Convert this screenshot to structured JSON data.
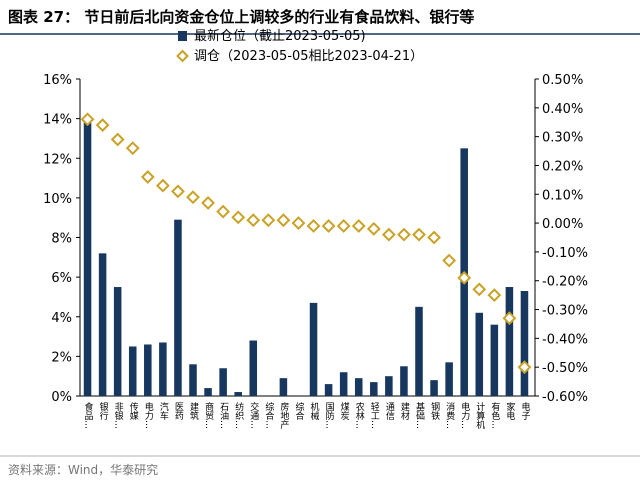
{
  "chart_data": {
    "type": "bar-scatter",
    "title": "图表 27：   节日前后北向资金仓位上调较多的行业有食品饮料、银行等",
    "source": "资料来源：Wind，华泰研究",
    "categories": [
      "食品…",
      "银行",
      "非银…",
      "传媒",
      "电力…",
      "汽车",
      "医药",
      "建筑",
      "商贸…",
      "石油…",
      "纺织…",
      "交通…",
      "综合…",
      "房地产",
      "综合",
      "机械",
      "国防…",
      "煤炭",
      "农林…",
      "轻工…",
      "通信",
      "建材",
      "基础…",
      "钢铁",
      "消费…",
      "电力…",
      "计算机",
      "有色…",
      "家电",
      "电子"
    ],
    "series": [
      {
        "name": "最新仓位（截止2023-05-05)",
        "color": "#17375e",
        "kind": "bar",
        "values": [
          14.0,
          7.2,
          5.5,
          2.5,
          2.6,
          2.7,
          8.9,
          1.6,
          0.4,
          1.4,
          0.2,
          2.8,
          0.0,
          0.9,
          0.0,
          4.7,
          0.6,
          1.2,
          0.9,
          0.7,
          1.0,
          1.5,
          4.5,
          0.8,
          1.7,
          12.5,
          4.2,
          3.6,
          5.5,
          5.3
        ]
      },
      {
        "name": "调仓（2023-05-05相比2023-04-21）",
        "color": "#c9a227",
        "kind": "diamond",
        "axis": "y2",
        "values": [
          0.36,
          0.34,
          0.29,
          0.26,
          0.16,
          0.13,
          0.11,
          0.09,
          0.07,
          0.04,
          0.02,
          0.01,
          0.01,
          0.01,
          0.0,
          -0.01,
          -0.01,
          -0.01,
          -0.01,
          -0.02,
          -0.04,
          -0.04,
          -0.04,
          -0.05,
          -0.13,
          -0.19,
          -0.23,
          -0.25,
          -0.33,
          -0.5
        ]
      }
    ],
    "ylim": [
      0,
      16
    ],
    "yticks": [
      {
        "value": 0,
        "label": "0%"
      },
      {
        "value": 2,
        "label": "2%"
      },
      {
        "value": 4,
        "label": "4%"
      },
      {
        "value": 6,
        "label": "6%"
      },
      {
        "value": 8,
        "label": "8%"
      },
      {
        "value": 10,
        "label": "10%"
      },
      {
        "value": 12,
        "label": "12%"
      },
      {
        "value": 14,
        "label": "14%"
      },
      {
        "value": 16,
        "label": "16%"
      }
    ],
    "y2lim": [
      -0.6,
      0.5
    ],
    "y2ticks": [
      {
        "value": -0.6,
        "label": "-0.60%"
      },
      {
        "value": -0.5,
        "label": "-0.50%"
      },
      {
        "value": -0.4,
        "label": "-0.40%"
      },
      {
        "value": -0.3,
        "label": "-0.30%"
      },
      {
        "value": -0.2,
        "label": "-0.20%"
      },
      {
        "value": -0.1,
        "label": "-0.10%"
      },
      {
        "value": 0.0,
        "label": "0.00%"
      },
      {
        "value": 0.1,
        "label": "0.10%"
      },
      {
        "value": 0.2,
        "label": "0.20%"
      },
      {
        "value": 0.3,
        "label": "0.30%"
      },
      {
        "value": 0.4,
        "label": "0.40%"
      },
      {
        "value": 0.5,
        "label": "0.50%"
      }
    ]
  }
}
